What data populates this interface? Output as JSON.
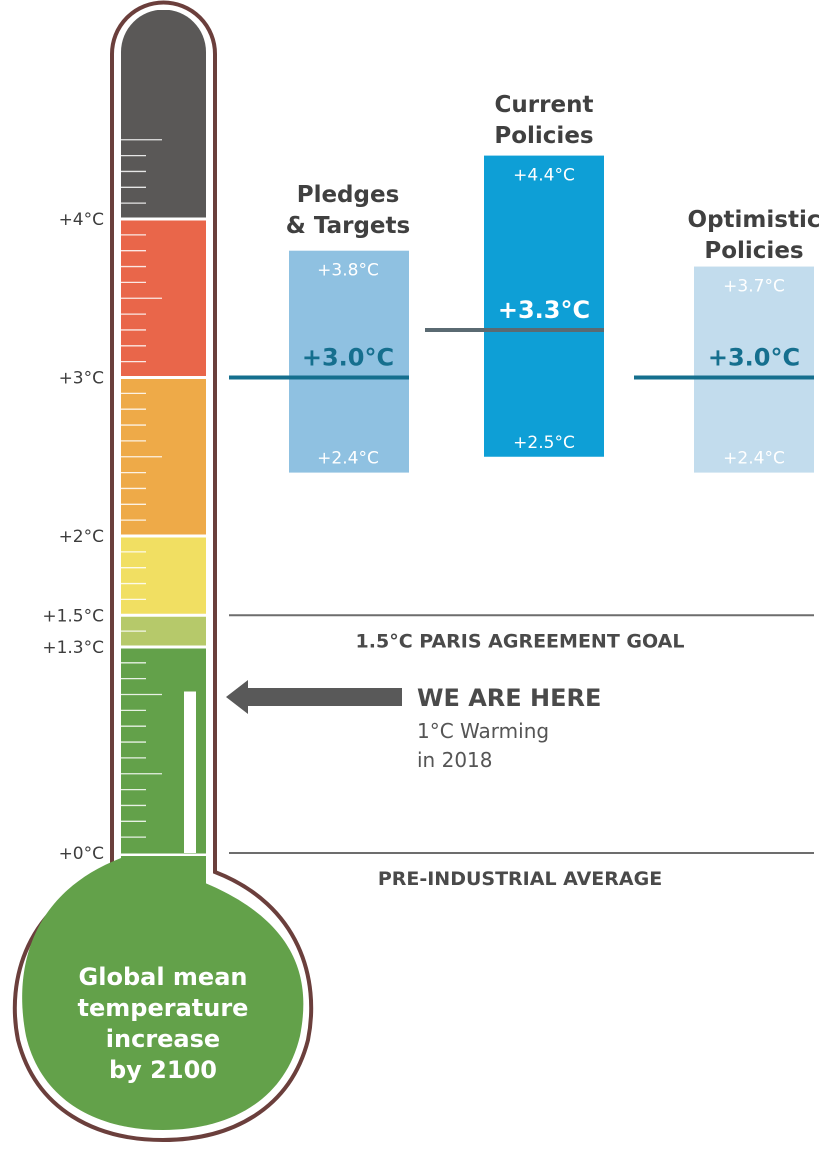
{
  "chart_data": {
    "type": "bar",
    "title": "",
    "unit": "°C",
    "ylim": [
      0,
      4.6
    ],
    "axis_ticks": [
      {
        "value": 4.0,
        "label": "+4°C"
      },
      {
        "value": 3.0,
        "label": "+3°C"
      },
      {
        "value": 2.0,
        "label": "+2°C"
      },
      {
        "value": 1.5,
        "label": "+1.5°C"
      },
      {
        "value": 1.3,
        "label": "+1.3°C"
      },
      {
        "value": 0.0,
        "label": "+0°C"
      }
    ],
    "color_bands": [
      {
        "from": 0.0,
        "to": 1.3,
        "color": "#63a14a"
      },
      {
        "from": 1.3,
        "to": 1.5,
        "color": "#b6c96a"
      },
      {
        "from": 1.5,
        "to": 2.0,
        "color": "#f1df62"
      },
      {
        "from": 2.0,
        "to": 3.0,
        "color": "#eeaa48"
      },
      {
        "from": 3.0,
        "to": 4.0,
        "color": "#e9664a"
      },
      {
        "from": 4.0,
        "to": 4.6,
        "color": "#5a5857"
      }
    ],
    "categories": [
      "Pledges & Targets",
      "Current Policies",
      "Optimistic Policies"
    ],
    "series": [
      {
        "name": "low",
        "values": [
          2.4,
          2.5,
          2.4
        ]
      },
      {
        "name": "central",
        "values": [
          3.0,
          3.3,
          3.0
        ]
      },
      {
        "name": "high",
        "values": [
          3.8,
          4.4,
          3.7
        ]
      }
    ],
    "scenarios": [
      {
        "name_lines": [
          "Pledges",
          "& Targets"
        ],
        "low": 2.4,
        "central": 3.0,
        "high": 3.8,
        "low_label": "+2.4°C",
        "central_label": "+3.0°C",
        "high_label": "+3.8°C",
        "fill": "#8fc1e1",
        "line_color": "#156f8e"
      },
      {
        "name_lines": [
          "Current",
          "Policies"
        ],
        "low": 2.5,
        "central": 3.3,
        "high": 4.4,
        "low_label": "+2.5°C",
        "central_label": "+3.3°C",
        "high_label": "+4.4°C",
        "fill": "#0e9fd6",
        "line_color": "#5a6a72"
      },
      {
        "name_lines": [
          "Optimistic",
          "Policies"
        ],
        "low": 2.4,
        "central": 3.0,
        "high": 3.7,
        "low_label": "+2.4°C",
        "central_label": "+3.0°C",
        "high_label": "+3.7°C",
        "fill": "#c2dced",
        "line_color": "#156f8e"
      }
    ],
    "reference_lines": [
      {
        "value": 1.5,
        "label": "1.5°C PARIS AGREEMENT GOAL"
      },
      {
        "value": 0.0,
        "label": "PRE-INDUSTRIAL AVERAGE"
      }
    ],
    "current_level": {
      "value": 1.0,
      "title": "WE ARE HERE",
      "lines": [
        "1°C Warming",
        "in 2018"
      ]
    },
    "bulb_text": [
      "Global mean",
      "temperature",
      "increase",
      "by 2100"
    ],
    "colors": {
      "outline": "#6b3f3c",
      "text_dark": "#4a4a4a",
      "tube_green": "#63a14a",
      "arrow": "#595959"
    }
  }
}
